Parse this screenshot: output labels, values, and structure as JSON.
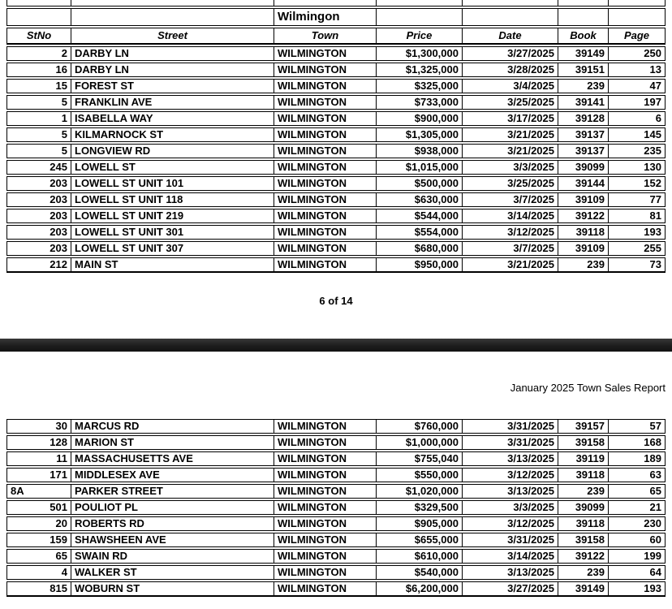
{
  "colors": {
    "separator_bar": "#1d1d1d",
    "border": "#000000",
    "page_background": "#ffffff"
  },
  "page1": {
    "table": {
      "title": "Wilmingon",
      "columns": [
        "StNo",
        "Street",
        "Town",
        "Price",
        "Date",
        "Book",
        "Page"
      ],
      "rows": [
        [
          "2",
          "DARBY LN",
          "WILMINGTON",
          "$1,300,000",
          "3/27/2025",
          "39149",
          "250"
        ],
        [
          "16",
          "DARBY LN",
          "WILMINGTON",
          "$1,325,000",
          "3/28/2025",
          "39151",
          "13"
        ],
        [
          "15",
          "FOREST ST",
          "WILMINGTON",
          "$325,000",
          "3/4/2025",
          "239",
          "47"
        ],
        [
          "5",
          "FRANKLIN AVE",
          "WILMINGTON",
          "$733,000",
          "3/25/2025",
          "39141",
          "197"
        ],
        [
          "1",
          "ISABELLA WAY",
          "WILMINGTON",
          "$900,000",
          "3/17/2025",
          "39128",
          "6"
        ],
        [
          "5",
          "KILMARNOCK ST",
          "WILMINGTON",
          "$1,305,000",
          "3/21/2025",
          "39137",
          "145"
        ],
        [
          "5",
          "LONGVIEW RD",
          "WILMINGTON",
          "$938,000",
          "3/21/2025",
          "39137",
          "235"
        ],
        [
          "245",
          "LOWELL ST",
          "WILMINGTON",
          "$1,015,000",
          "3/3/2025",
          "39099",
          "130"
        ],
        [
          "203",
          "LOWELL ST UNIT 101",
          "WILMINGTON",
          "$500,000",
          "3/25/2025",
          "39144",
          "152"
        ],
        [
          "203",
          "LOWELL ST UNIT 118",
          "WILMINGTON",
          "$630,000",
          "3/7/2025",
          "39109",
          "77"
        ],
        [
          "203",
          "LOWELL ST UNIT 219",
          "WILMINGTON",
          "$544,000",
          "3/14/2025",
          "39122",
          "81"
        ],
        [
          "203",
          "LOWELL ST UNIT 301",
          "WILMINGTON",
          "$554,000",
          "3/12/2025",
          "39118",
          "193"
        ],
        [
          "203",
          "LOWELL ST UNIT 307",
          "WILMINGTON",
          "$680,000",
          "3/7/2025",
          "39109",
          "255"
        ],
        [
          "212",
          "MAIN ST",
          "WILMINGTON",
          "$950,000",
          "3/21/2025",
          "239",
          "73"
        ]
      ]
    },
    "footer": "6 of 14"
  },
  "page2": {
    "header": "January 2025 Town Sales Report",
    "table": {
      "rows": [
        [
          "30",
          "MARCUS RD",
          "WILMINGTON",
          "$760,000",
          "3/31/2025",
          "39157",
          "57"
        ],
        [
          "128",
          "MARION ST",
          "WILMINGTON",
          "$1,000,000",
          "3/31/2025",
          "39158",
          "168"
        ],
        [
          "11",
          "MASSACHUSETTS AVE",
          "WILMINGTON",
          "$755,040",
          "3/13/2025",
          "39119",
          "189"
        ],
        [
          "171",
          "MIDDLESEX AVE",
          "WILMINGTON",
          "$550,000",
          "3/12/2025",
          "39118",
          "63"
        ],
        [
          "8A",
          "PARKER STREET",
          "WILMINGTON",
          "$1,020,000",
          "3/13/2025",
          "239",
          "65"
        ],
        [
          "501",
          "POULIOT PL",
          "WILMINGTON",
          "$329,500",
          "3/3/2025",
          "39099",
          "21"
        ],
        [
          "20",
          "ROBERTS RD",
          "WILMINGTON",
          "$905,000",
          "3/12/2025",
          "39118",
          "230"
        ],
        [
          "159",
          "SHAWSHEEN AVE",
          "WILMINGTON",
          "$655,000",
          "3/31/2025",
          "39158",
          "60"
        ],
        [
          "65",
          "SWAIN RD",
          "WILMINGTON",
          "$610,000",
          "3/14/2025",
          "39122",
          "199"
        ],
        [
          "4",
          "WALKER ST",
          "WILMINGTON",
          "$540,000",
          "3/13/2025",
          "239",
          "64"
        ],
        [
          "815",
          "WOBURN ST",
          "WILMINGTON",
          "$6,200,000",
          "3/27/2025",
          "39149",
          "193"
        ]
      ]
    }
  }
}
